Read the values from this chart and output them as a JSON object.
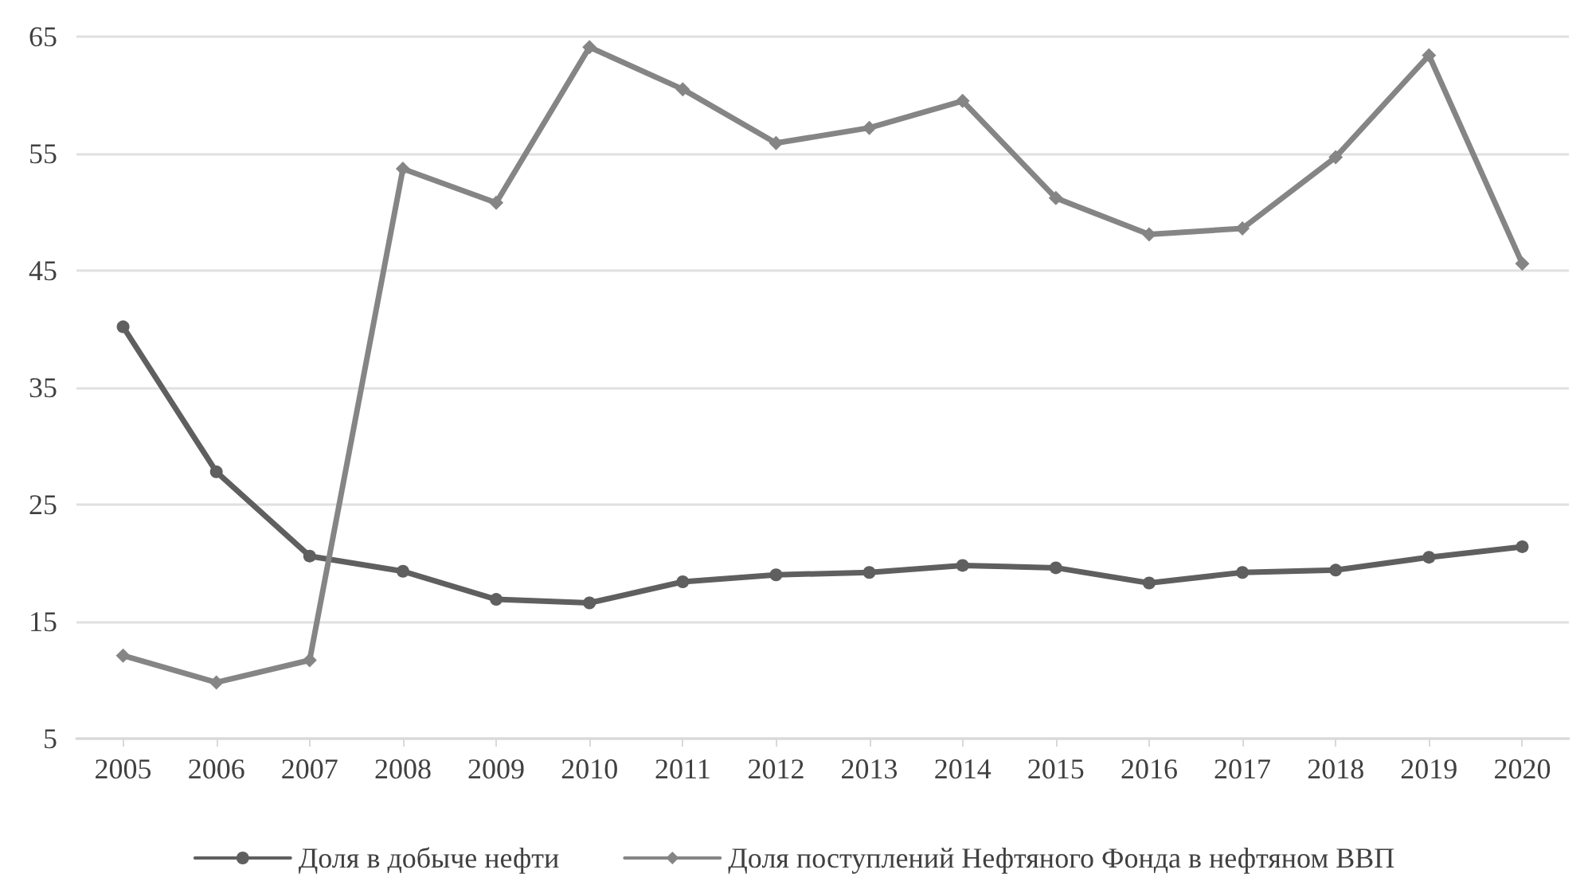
{
  "chart_data": {
    "type": "line",
    "categories": [
      "2005",
      "2006",
      "2007",
      "2008",
      "2009",
      "2010",
      "2011",
      "2012",
      "2013",
      "2014",
      "2015",
      "2016",
      "2017",
      "2018",
      "2019",
      "2020"
    ],
    "series": [
      {
        "name": "Доля в добыче нефти",
        "color": "#5f5f5f",
        "marker": "circle",
        "values": [
          40.2,
          27.8,
          20.6,
          19.3,
          16.9,
          16.6,
          18.4,
          19.0,
          19.2,
          19.8,
          19.6,
          18.3,
          19.2,
          19.4,
          20.5,
          21.4
        ]
      },
      {
        "name": "Доля поступлений Нефтяного Фонда в нефтяном ВВП",
        "color": "#858585",
        "marker": "diamond",
        "values": [
          12.1,
          9.8,
          11.7,
          53.7,
          50.8,
          64.1,
          60.5,
          55.9,
          57.2,
          59.5,
          51.2,
          48.1,
          48.6,
          54.7,
          63.4,
          45.6
        ]
      }
    ],
    "ylim": [
      5,
      65
    ],
    "yticks": [
      5,
      15,
      25,
      35,
      45,
      55,
      65
    ],
    "grid": "y",
    "legend": "bottom"
  }
}
